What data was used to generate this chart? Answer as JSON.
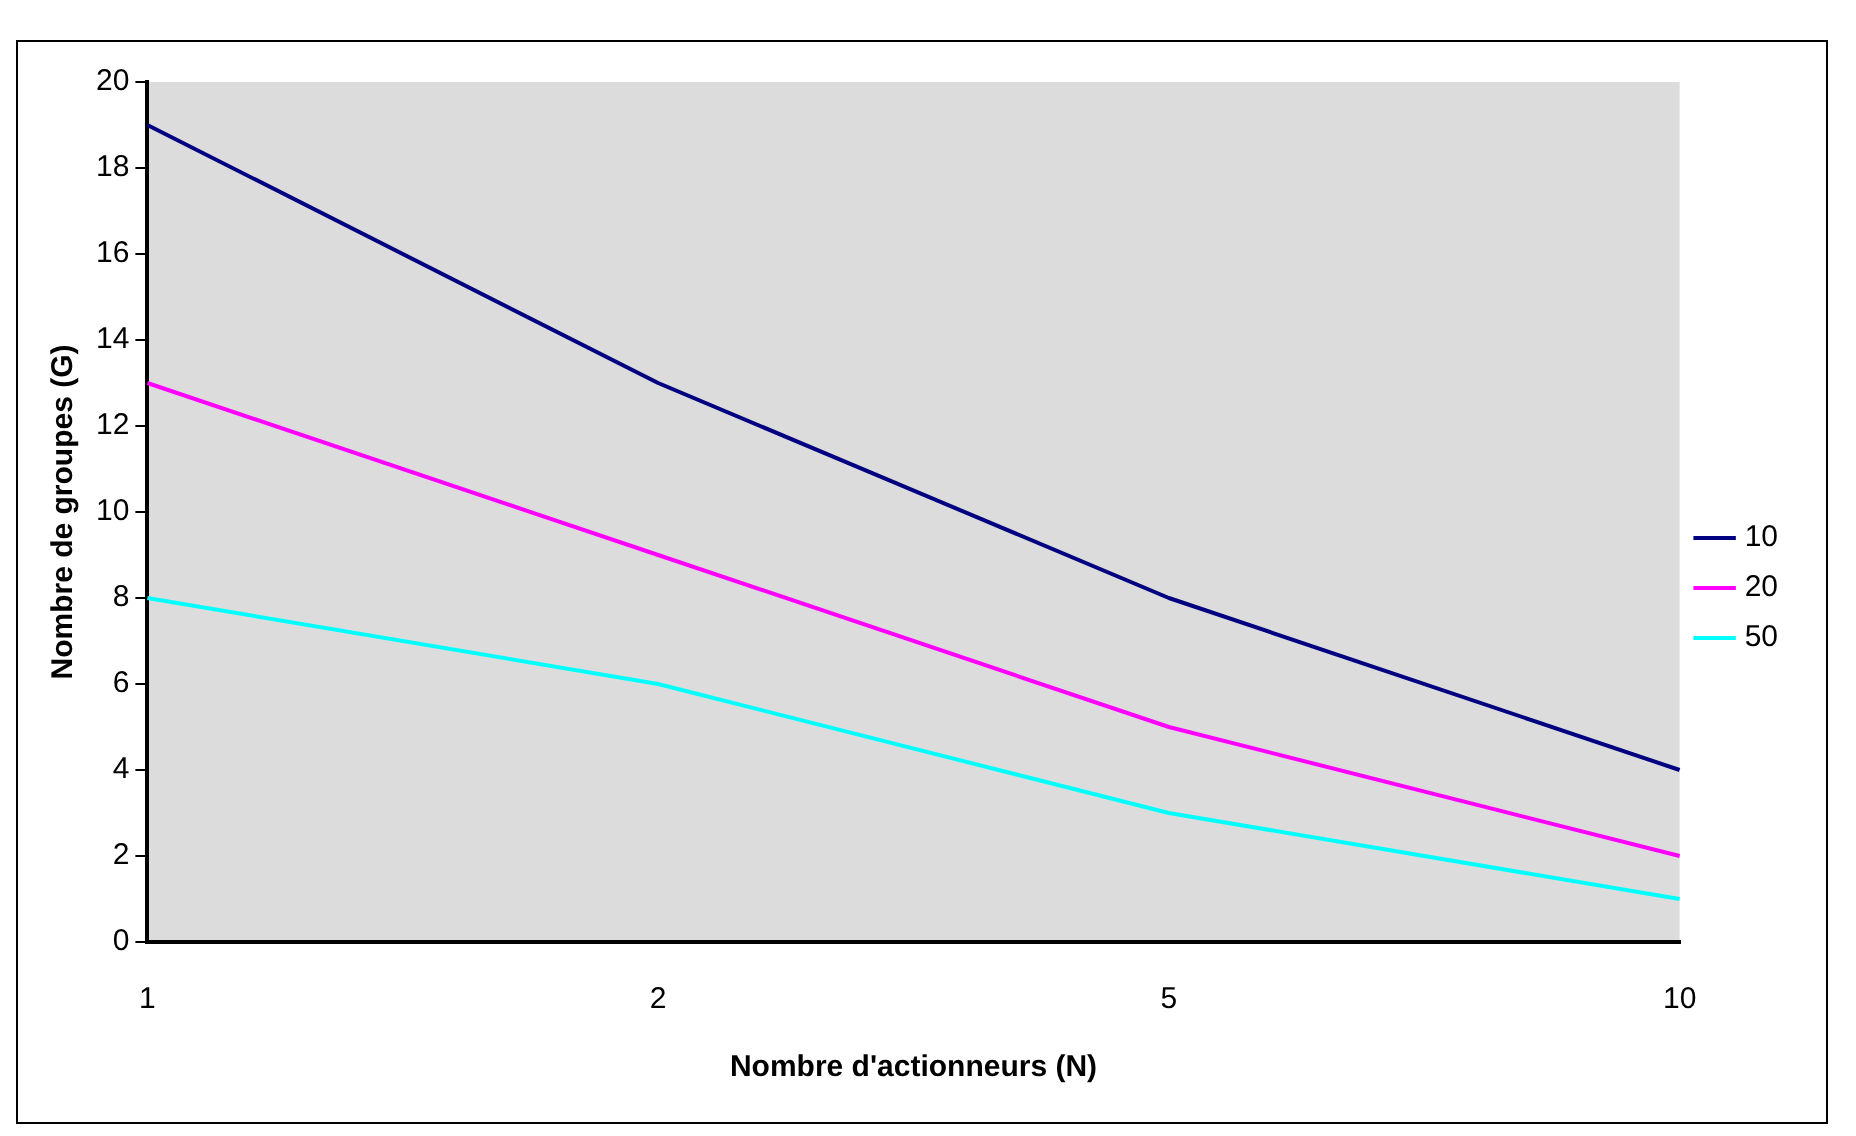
{
  "chart_data": {
    "type": "line",
    "xlabel": "Nombre d'actionneurs (N)",
    "ylabel": "Nombre de groupes (G)",
    "categories": [
      "1",
      "2",
      "5",
      "10"
    ],
    "series": [
      {
        "name": "10",
        "color": "#000080",
        "values": [
          19,
          13,
          8,
          4
        ]
      },
      {
        "name": "20",
        "color": "#ff00ff",
        "values": [
          13,
          9,
          5,
          2
        ]
      },
      {
        "name": "50",
        "color": "#00ffff",
        "values": [
          8,
          6,
          3,
          1
        ]
      }
    ],
    "ylim": [
      0,
      20
    ],
    "yticks": [
      0,
      2,
      4,
      6,
      8,
      10,
      12,
      14,
      16,
      18,
      20
    ],
    "grid": false,
    "legend": "right",
    "marker": "none",
    "line_style": "solid"
  }
}
